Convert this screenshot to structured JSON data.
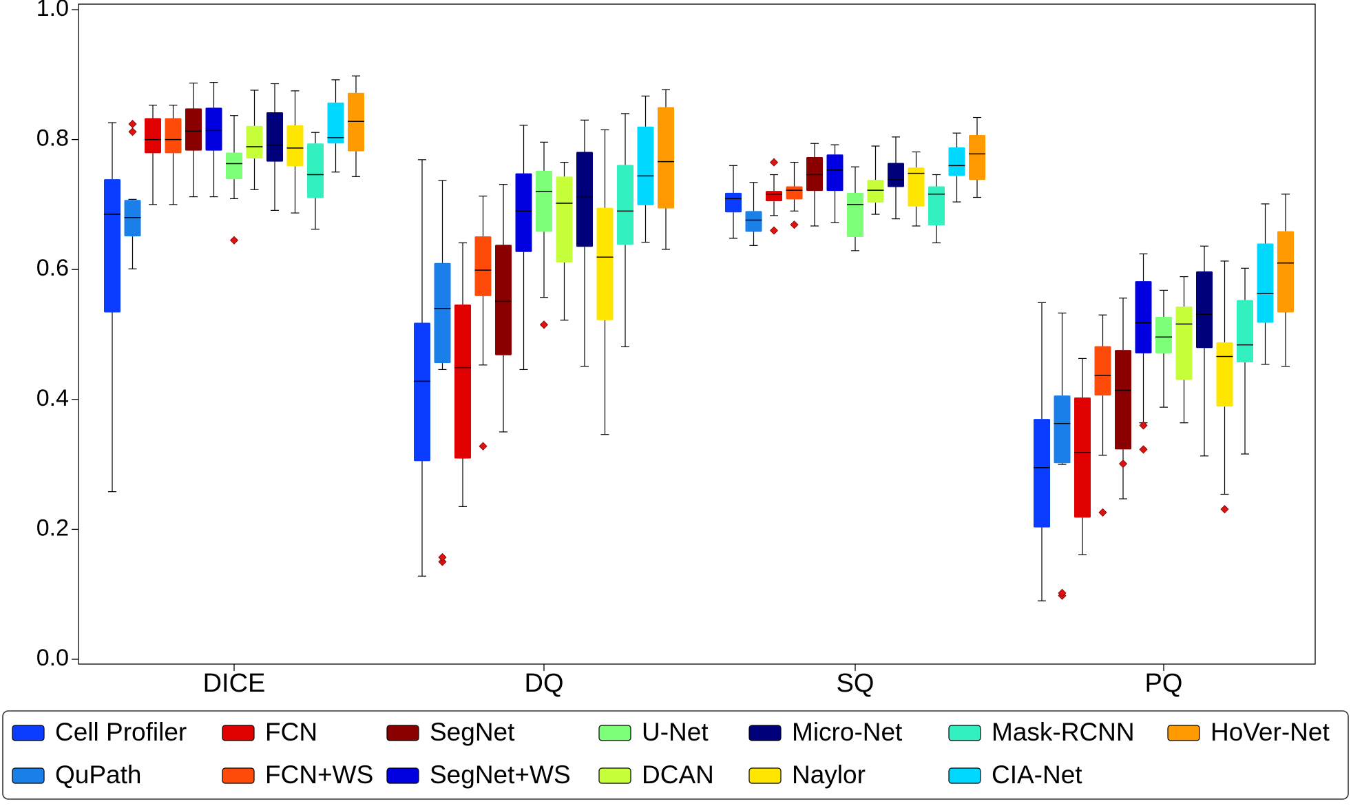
{
  "chart_data": {
    "type": "boxplot",
    "title": "",
    "xlabel": "",
    "ylabel": "",
    "ylim": [
      0.0,
      1.0
    ],
    "grid": false,
    "y_ticks": [
      "0.0",
      "0.2",
      "0.4",
      "0.6",
      "0.8",
      "1.0"
    ],
    "categories": [
      "DICE",
      "DQ",
      "SQ",
      "PQ"
    ],
    "legend_position": "bottom",
    "series": [
      {
        "name": "Cell Profiler",
        "color": "#0a3cff",
        "boxes": [
          {
            "whislo": 0.258,
            "q1": 0.534,
            "med": 0.685,
            "q3": 0.739,
            "whishi": 0.826,
            "fliers": []
          },
          {
            "whislo": 0.128,
            "q1": 0.305,
            "med": 0.428,
            "q3": 0.518,
            "whishi": 0.769,
            "fliers": []
          },
          {
            "whislo": 0.648,
            "q1": 0.688,
            "med": 0.709,
            "q3": 0.718,
            "whishi": 0.76,
            "fliers": []
          },
          {
            "whislo": 0.09,
            "q1": 0.203,
            "med": 0.295,
            "q3": 0.37,
            "whishi": 0.549,
            "fliers": []
          }
        ]
      },
      {
        "name": "QuPath",
        "color": "#1a7fe8",
        "boxes": [
          {
            "whislo": 0.601,
            "q1": 0.651,
            "med": 0.68,
            "q3": 0.707,
            "whishi": 0.708,
            "fliers": [
              0.812,
              0.824
            ]
          },
          {
            "whislo": 0.446,
            "q1": 0.456,
            "med": 0.54,
            "q3": 0.61,
            "whishi": 0.737,
            "fliers": [
              0.15,
              0.157
            ]
          },
          {
            "whislo": 0.637,
            "q1": 0.658,
            "med": 0.676,
            "q3": 0.69,
            "whishi": 0.734,
            "fliers": []
          },
          {
            "whislo": 0.3,
            "q1": 0.302,
            "med": 0.363,
            "q3": 0.406,
            "whishi": 0.533,
            "fliers": [
              0.098,
              0.102
            ]
          }
        ]
      },
      {
        "name": "FCN",
        "color": "#e00000",
        "boxes": [
          {
            "whislo": 0.7,
            "q1": 0.779,
            "med": 0.8,
            "q3": 0.833,
            "whishi": 0.853,
            "fliers": []
          },
          {
            "whislo": 0.235,
            "q1": 0.309,
            "med": 0.449,
            "q3": 0.546,
            "whishi": 0.641,
            "fliers": []
          },
          {
            "whislo": 0.683,
            "q1": 0.705,
            "med": 0.716,
            "q3": 0.721,
            "whishi": 0.746,
            "fliers": [
              0.66,
              0.765
            ]
          },
          {
            "whislo": 0.161,
            "q1": 0.218,
            "med": 0.318,
            "q3": 0.403,
            "whishi": 0.463,
            "fliers": []
          }
        ]
      },
      {
        "name": "FCN+WS",
        "color": "#ff4b0a",
        "boxes": [
          {
            "whislo": 0.7,
            "q1": 0.779,
            "med": 0.8,
            "q3": 0.833,
            "whishi": 0.853,
            "fliers": []
          },
          {
            "whislo": 0.453,
            "q1": 0.559,
            "med": 0.599,
            "q3": 0.651,
            "whishi": 0.713,
            "fliers": [
              0.328
            ]
          },
          {
            "whislo": 0.69,
            "q1": 0.708,
            "med": 0.722,
            "q3": 0.728,
            "whishi": 0.765,
            "fliers": [
              0.669
            ]
          },
          {
            "whislo": 0.314,
            "q1": 0.406,
            "med": 0.437,
            "q3": 0.482,
            "whishi": 0.53,
            "fliers": [
              0.226
            ]
          }
        ]
      },
      {
        "name": "SegNet",
        "color": "#8a0000",
        "boxes": [
          {
            "whislo": 0.712,
            "q1": 0.783,
            "med": 0.813,
            "q3": 0.848,
            "whishi": 0.887,
            "fliers": []
          },
          {
            "whislo": 0.35,
            "q1": 0.468,
            "med": 0.551,
            "q3": 0.638,
            "whishi": 0.731,
            "fliers": []
          },
          {
            "whislo": 0.667,
            "q1": 0.721,
            "med": 0.746,
            "q3": 0.773,
            "whishi": 0.794,
            "fliers": []
          },
          {
            "whislo": 0.247,
            "q1": 0.323,
            "med": 0.414,
            "q3": 0.476,
            "whishi": 0.556,
            "fliers": [
              0.301
            ]
          }
        ]
      },
      {
        "name": "SegNet+WS",
        "color": "#0000e0",
        "boxes": [
          {
            "whislo": 0.712,
            "q1": 0.783,
            "med": 0.814,
            "q3": 0.849,
            "whishi": 0.888,
            "fliers": []
          },
          {
            "whislo": 0.446,
            "q1": 0.627,
            "med": 0.69,
            "q3": 0.748,
            "whishi": 0.822,
            "fliers": []
          },
          {
            "whislo": 0.672,
            "q1": 0.721,
            "med": 0.753,
            "q3": 0.777,
            "whishi": 0.792,
            "fliers": []
          },
          {
            "whislo": 0.364,
            "q1": 0.471,
            "med": 0.518,
            "q3": 0.582,
            "whishi": 0.624,
            "fliers": [
              0.323,
              0.36
            ]
          }
        ]
      },
      {
        "name": "U-Net",
        "color": "#7dff7a",
        "boxes": [
          {
            "whislo": 0.709,
            "q1": 0.739,
            "med": 0.763,
            "q3": 0.78,
            "whishi": 0.837,
            "fliers": [
              0.645
            ]
          },
          {
            "whislo": 0.557,
            "q1": 0.658,
            "med": 0.72,
            "q3": 0.752,
            "whishi": 0.796,
            "fliers": [
              0.515
            ]
          },
          {
            "whislo": 0.629,
            "q1": 0.65,
            "med": 0.7,
            "q3": 0.718,
            "whishi": 0.758,
            "fliers": []
          },
          {
            "whislo": 0.388,
            "q1": 0.471,
            "med": 0.496,
            "q3": 0.527,
            "whishi": 0.568,
            "fliers": []
          }
        ]
      },
      {
        "name": "DCAN",
        "color": "#c6ff3a",
        "boxes": [
          {
            "whislo": 0.723,
            "q1": 0.771,
            "med": 0.789,
            "q3": 0.821,
            "whishi": 0.876,
            "fliers": []
          },
          {
            "whislo": 0.522,
            "q1": 0.611,
            "med": 0.702,
            "q3": 0.743,
            "whishi": 0.765,
            "fliers": []
          },
          {
            "whislo": 0.685,
            "q1": 0.703,
            "med": 0.722,
            "q3": 0.738,
            "whishi": 0.79,
            "fliers": []
          },
          {
            "whislo": 0.364,
            "q1": 0.43,
            "med": 0.516,
            "q3": 0.543,
            "whishi": 0.589,
            "fliers": []
          }
        ]
      },
      {
        "name": "Micro-Net",
        "color": "#00007a",
        "boxes": [
          {
            "whislo": 0.691,
            "q1": 0.766,
            "med": 0.791,
            "q3": 0.842,
            "whishi": 0.886,
            "fliers": []
          },
          {
            "whislo": 0.451,
            "q1": 0.635,
            "med": 0.712,
            "q3": 0.781,
            "whishi": 0.83,
            "fliers": []
          },
          {
            "whislo": 0.678,
            "q1": 0.727,
            "med": 0.738,
            "q3": 0.764,
            "whishi": 0.804,
            "fliers": []
          },
          {
            "whislo": 0.313,
            "q1": 0.479,
            "med": 0.531,
            "q3": 0.597,
            "whishi": 0.636,
            "fliers": []
          }
        ]
      },
      {
        "name": "Naylor",
        "color": "#ffe600",
        "boxes": [
          {
            "whislo": 0.687,
            "q1": 0.759,
            "med": 0.787,
            "q3": 0.822,
            "whishi": 0.875,
            "fliers": []
          },
          {
            "whislo": 0.346,
            "q1": 0.522,
            "med": 0.619,
            "q3": 0.695,
            "whishi": 0.815,
            "fliers": []
          },
          {
            "whislo": 0.667,
            "q1": 0.697,
            "med": 0.748,
            "q3": 0.757,
            "whishi": 0.781,
            "fliers": []
          },
          {
            "whislo": 0.254,
            "q1": 0.389,
            "med": 0.466,
            "q3": 0.488,
            "whishi": 0.613,
            "fliers": [
              0.231
            ]
          }
        ]
      },
      {
        "name": "Mask-RCNN",
        "color": "#33f0c0",
        "boxes": [
          {
            "whislo": 0.662,
            "q1": 0.71,
            "med": 0.746,
            "q3": 0.794,
            "whishi": 0.811,
            "fliers": []
          },
          {
            "whislo": 0.481,
            "q1": 0.638,
            "med": 0.69,
            "q3": 0.761,
            "whishi": 0.84,
            "fliers": []
          },
          {
            "whislo": 0.641,
            "q1": 0.668,
            "med": 0.716,
            "q3": 0.728,
            "whishi": 0.746,
            "fliers": []
          },
          {
            "whislo": 0.316,
            "q1": 0.457,
            "med": 0.484,
            "q3": 0.553,
            "whishi": 0.602,
            "fliers": []
          }
        ]
      },
      {
        "name": "CIA-Net",
        "color": "#00d8ff",
        "boxes": [
          {
            "whislo": 0.75,
            "q1": 0.794,
            "med": 0.803,
            "q3": 0.857,
            "whishi": 0.892,
            "fliers": []
          },
          {
            "whislo": 0.642,
            "q1": 0.699,
            "med": 0.744,
            "q3": 0.82,
            "whishi": 0.867,
            "fliers": []
          },
          {
            "whislo": 0.704,
            "q1": 0.744,
            "med": 0.76,
            "q3": 0.788,
            "whishi": 0.81,
            "fliers": []
          },
          {
            "whislo": 0.454,
            "q1": 0.518,
            "med": 0.563,
            "q3": 0.64,
            "whishi": 0.701,
            "fliers": []
          }
        ]
      },
      {
        "name": "HoVer-Net",
        "color": "#ff9a00",
        "boxes": [
          {
            "whislo": 0.743,
            "q1": 0.782,
            "med": 0.828,
            "q3": 0.872,
            "whishi": 0.898,
            "fliers": []
          },
          {
            "whislo": 0.631,
            "q1": 0.694,
            "med": 0.766,
            "q3": 0.85,
            "whishi": 0.877,
            "fliers": []
          },
          {
            "whislo": 0.711,
            "q1": 0.738,
            "med": 0.778,
            "q3": 0.807,
            "whishi": 0.834,
            "fliers": []
          },
          {
            "whislo": 0.451,
            "q1": 0.534,
            "med": 0.61,
            "q3": 0.659,
            "whishi": 0.716,
            "fliers": []
          }
        ]
      }
    ]
  }
}
